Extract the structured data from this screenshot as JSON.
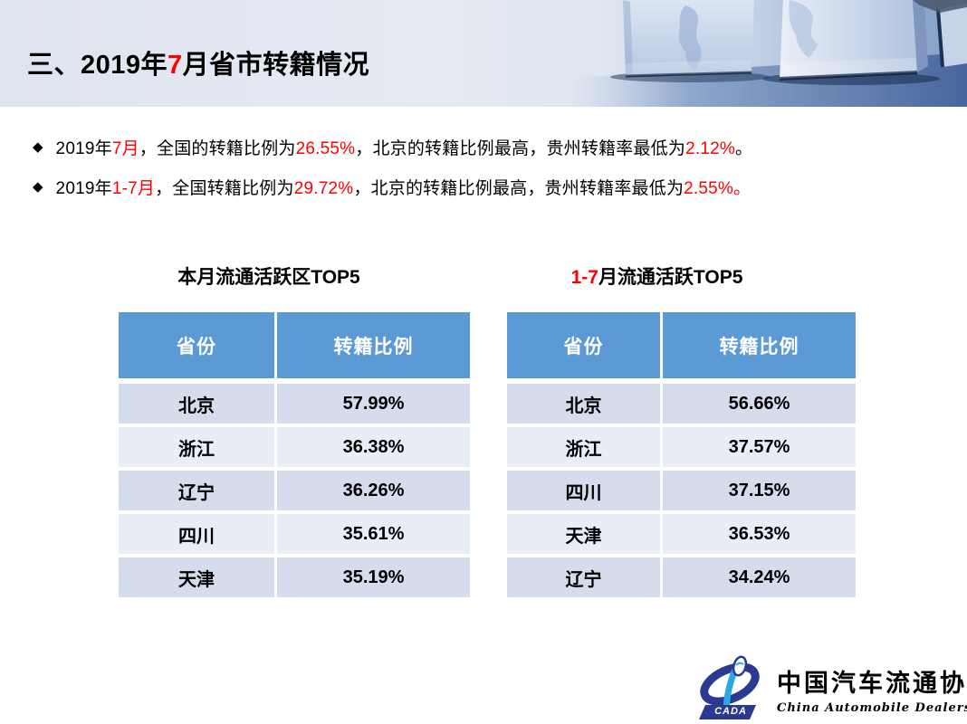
{
  "header": {
    "title_segments": [
      {
        "t": "三、2019年",
        "c": "#000000"
      },
      {
        "t": "7",
        "c": "#FF0000"
      },
      {
        "t": "月省市转籍情况",
        "c": "#000000"
      }
    ]
  },
  "bullets": [
    {
      "segments": [
        {
          "t": "2019年",
          "c": "#000000"
        },
        {
          "t": "7月",
          "c": "#FF0000"
        },
        {
          "t": "，全国的转籍比例为",
          "c": "#000000"
        },
        {
          "t": "26.55%",
          "c": "#FF0000"
        },
        {
          "t": "，北京的转籍比例最高，贵州转籍率最低为",
          "c": "#000000"
        },
        {
          "t": "2.12%",
          "c": "#FF0000"
        },
        {
          "t": "。",
          "c": "#000000"
        }
      ]
    },
    {
      "segments": [
        {
          "t": "2019年",
          "c": "#000000"
        },
        {
          "t": "1-7月",
          "c": "#FF0000"
        },
        {
          "t": "，全国转籍比例为",
          "c": "#000000"
        },
        {
          "t": "29.72%",
          "c": "#FF0000"
        },
        {
          "t": "，北京的转籍比例最高，贵州转籍率最低为",
          "c": "#000000"
        },
        {
          "t": "2.55%。",
          "c": "#FF0000"
        }
      ]
    }
  ],
  "tables": [
    {
      "title_segments": [
        {
          "t": "本月流通活跃区TOP5",
          "c": "#000000"
        }
      ],
      "columns": [
        "省份",
        "转籍比例"
      ],
      "rows": [
        [
          "北京",
          "57.99%"
        ],
        [
          "浙江",
          "36.38%"
        ],
        [
          "辽宁",
          "36.26%"
        ],
        [
          "四川",
          "35.61%"
        ],
        [
          "天津",
          "35.19%"
        ]
      ]
    },
    {
      "title_segments": [
        {
          "t": "1-7",
          "c": "#FF0000"
        },
        {
          "t": "月流通活跃TOP5",
          "c": "#000000"
        }
      ],
      "columns": [
        "省份",
        "转籍比例"
      ],
      "rows": [
        [
          "北京",
          "56.66%"
        ],
        [
          "浙江",
          "37.57%"
        ],
        [
          "四川",
          "37.15%"
        ],
        [
          "天津",
          "36.53%"
        ],
        [
          "辽宁",
          "34.24%"
        ]
      ]
    }
  ],
  "bullet_marker": "◆",
  "logo": {
    "cada": "CADA",
    "cn": "中国汽车流通协会",
    "en": "China Automobile Dealers Association"
  },
  "colors": {
    "accent_red": "#FF0000",
    "table_header_blue": "#5B9AD5",
    "row_dark": "#D5DCEB",
    "row_light": "#E9EDF6",
    "logo_navy": "#2B3990",
    "logo_cyan": "#29ABE2"
  }
}
